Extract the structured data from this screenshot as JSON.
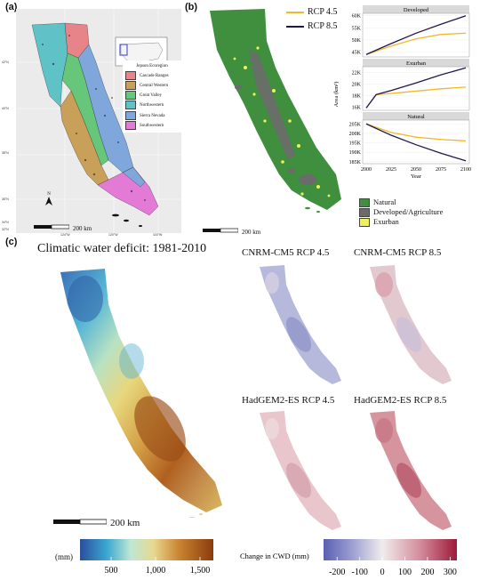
{
  "panels": {
    "a": {
      "letter": "(a)",
      "legend_title": "Jepson Ecoregion",
      "ecoregions": [
        {
          "label": "Cascade Ranges",
          "color": "#e6848a"
        },
        {
          "label": "Central Western",
          "color": "#c9a05a"
        },
        {
          "label": "Great Valley",
          "color": "#66c77a"
        },
        {
          "label": "Northwestern",
          "color": "#5ec2c6"
        },
        {
          "label": "Sierra Nevada",
          "color": "#7fa7dc"
        },
        {
          "label": "Southwestern",
          "color": "#e37ad6"
        }
      ],
      "scale_label": "200 km",
      "north_label": "N",
      "lat_ticks": [
        "42°N",
        "40°N",
        "38°N",
        "36°N",
        "34°N",
        "32°N"
      ],
      "lon_ticks": [
        "124°W",
        "120°W",
        "116°W"
      ]
    },
    "b": {
      "letter": "(b)",
      "rcp_legend": [
        {
          "label": "RCP 4.5",
          "color": "#f2b82d"
        },
        {
          "label": "RCP 8.5",
          "color": "#23164a"
        }
      ],
      "landcover_legend": [
        {
          "label": "Natural",
          "color": "#3f8f3f"
        },
        {
          "label": "Developed/Agriculture",
          "color": "#6b6b6b"
        },
        {
          "label": "Exurban",
          "color": "#f1f157"
        }
      ],
      "scale_label": "200 km",
      "y_axis_label": "Area (km²)",
      "x_axis_label": "Year"
    },
    "c": {
      "letter": "(c)",
      "main_title": "Climatic water deficit: 1981-2010",
      "scale_label": "200 km",
      "small_maps": [
        {
          "title": "CNRM-CM5 RCP 4.5"
        },
        {
          "title": "CNRM-CM5 RCP 8.5"
        },
        {
          "title": "HadGEM2-ES RCP 4.5"
        },
        {
          "title": "HadGEM2-ES RCP 8.5"
        }
      ],
      "cwd_colorbar": {
        "unit_label": "(mm)",
        "ticks": [
          "500",
          "1,000",
          "1,500"
        ],
        "tick_values": [
          500,
          1000,
          1500
        ],
        "range": [
          150,
          1650
        ]
      },
      "change_colorbar": {
        "label": "Change in CWD (mm)",
        "ticks": [
          "-200",
          "-100",
          "0",
          "100",
          "200",
          "300"
        ],
        "tick_values": [
          -200,
          -100,
          0,
          100,
          200,
          300
        ],
        "range": [
          -260,
          330
        ]
      }
    }
  },
  "chart_data": [
    {
      "type": "line",
      "title": "Developed",
      "xlabel": "Year",
      "ylabel": "Area (km²)",
      "x": [
        2000,
        2025,
        2050,
        2075,
        2100
      ],
      "ylim": [
        43000,
        61000
      ],
      "yticks": [
        45000,
        50000,
        55000,
        60000
      ],
      "ytick_labels": [
        "45K",
        "50K",
        "55K",
        "60K"
      ],
      "series": [
        {
          "name": "RCP 4.5",
          "values": [
            44000,
            47500,
            50500,
            52300,
            52800
          ]
        },
        {
          "name": "RCP 8.5",
          "values": [
            44000,
            48500,
            52800,
            56500,
            60000
          ]
        }
      ]
    },
    {
      "type": "line",
      "title": "Exurban",
      "xlabel": "Year",
      "ylabel": "Area (km²)",
      "x": [
        2000,
        2010,
        2025,
        2050,
        2075,
        2100
      ],
      "ylim": [
        15500,
        23000
      ],
      "yticks": [
        16000,
        18000,
        20000,
        22000
      ],
      "ytick_labels": [
        "16K",
        "18K",
        "20K",
        "22K"
      ],
      "series": [
        {
          "name": "RCP 4.5",
          "values": [
            15900,
            18200,
            18400,
            18800,
            19200,
            19500
          ]
        },
        {
          "name": "RCP 8.5",
          "values": [
            15900,
            18200,
            18900,
            20200,
            21600,
            22800
          ]
        }
      ]
    },
    {
      "type": "line",
      "title": "Natural",
      "xlabel": "Year",
      "ylabel": "Area (km²)",
      "x": [
        2000,
        2025,
        2050,
        2075,
        2100
      ],
      "ylim": [
        184000,
        207000
      ],
      "yticks": [
        185000,
        190000,
        195000,
        200000,
        205000
      ],
      "ytick_labels": [
        "185K",
        "190K",
        "195K",
        "200K",
        "205K"
      ],
      "xticks": [
        2000,
        2025,
        2050,
        2075,
        2100
      ],
      "series": [
        {
          "name": "RCP 4.5",
          "values": [
            205000,
            200500,
            198000,
            196800,
            196000
          ]
        },
        {
          "name": "RCP 8.5",
          "values": [
            205000,
            199000,
            194000,
            189500,
            185500
          ]
        }
      ]
    }
  ]
}
